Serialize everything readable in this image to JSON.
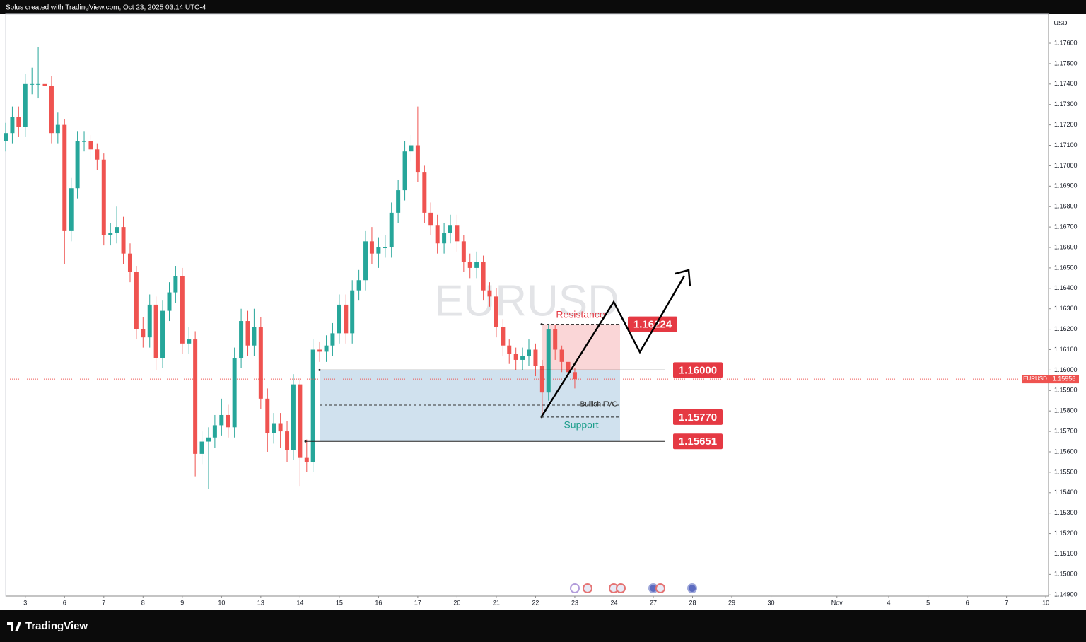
{
  "header_text": "Solus created with TradingView.com, Oct 23, 2025 03:14 UTC-4",
  "brand": "TradingView",
  "chart_data": {
    "type": "candlestick",
    "watermark": "EURUSD",
    "symbol": "EURUSD",
    "currency": "USD",
    "up_color": "#26a69a",
    "down_color": "#ef5350",
    "grid": false,
    "xlim": [
      -0.5,
      26.07
    ],
    "xticks": [
      {
        "value": 0,
        "label": "3"
      },
      {
        "value": 1,
        "label": "6"
      },
      {
        "value": 2,
        "label": "7"
      },
      {
        "value": 3,
        "label": "8"
      },
      {
        "value": 4,
        "label": "9"
      },
      {
        "value": 5,
        "label": "10"
      },
      {
        "value": 6,
        "label": "13"
      },
      {
        "value": 7,
        "label": "14"
      },
      {
        "value": 8,
        "label": "15"
      },
      {
        "value": 9,
        "label": "16"
      },
      {
        "value": 10,
        "label": "17"
      },
      {
        "value": 11,
        "label": "20"
      },
      {
        "value": 12,
        "label": "21"
      },
      {
        "value": 13,
        "label": "22"
      },
      {
        "value": 14,
        "label": "23"
      },
      {
        "value": 15,
        "label": "24"
      },
      {
        "value": 16,
        "label": "27"
      },
      {
        "value": 17,
        "label": "28"
      },
      {
        "value": 18,
        "label": "29"
      },
      {
        "value": 19,
        "label": "30"
      },
      {
        "value": 20.68,
        "label": "Nov"
      },
      {
        "value": 22,
        "label": "4"
      },
      {
        "value": 23,
        "label": "5"
      },
      {
        "value": 24,
        "label": "6"
      },
      {
        "value": 25,
        "label": "7"
      },
      {
        "value": 26,
        "label": "10"
      }
    ],
    "ylim": [
      1.14894,
      1.17742
    ],
    "yticks": [
      {
        "value": 1.149,
        "label": "1.14900"
      },
      {
        "value": 1.15,
        "label": "1.15000"
      },
      {
        "value": 1.151,
        "label": "1.15100"
      },
      {
        "value": 1.152,
        "label": "1.15200"
      },
      {
        "value": 1.153,
        "label": "1.15300"
      },
      {
        "value": 1.154,
        "label": "1.15400"
      },
      {
        "value": 1.155,
        "label": "1.15500"
      },
      {
        "value": 1.156,
        "label": "1.15600"
      },
      {
        "value": 1.157,
        "label": "1.15700"
      },
      {
        "value": 1.158,
        "label": "1.15800"
      },
      {
        "value": 1.159,
        "label": "1.15900"
      },
      {
        "value": 1.16,
        "label": "1.16000"
      },
      {
        "value": 1.161,
        "label": "1.16100"
      },
      {
        "value": 1.162,
        "label": "1.16200"
      },
      {
        "value": 1.163,
        "label": "1.16300"
      },
      {
        "value": 1.164,
        "label": "1.16400"
      },
      {
        "value": 1.165,
        "label": "1.16500"
      },
      {
        "value": 1.166,
        "label": "1.16600"
      },
      {
        "value": 1.167,
        "label": "1.16700"
      },
      {
        "value": 1.168,
        "label": "1.16800"
      },
      {
        "value": 1.169,
        "label": "1.16900"
      },
      {
        "value": 1.17,
        "label": "1.17000"
      },
      {
        "value": 1.171,
        "label": "1.17100"
      },
      {
        "value": 1.172,
        "label": "1.17200"
      },
      {
        "value": 1.173,
        "label": "1.17300"
      },
      {
        "value": 1.174,
        "label": "1.17400"
      },
      {
        "value": 1.175,
        "label": "1.17500"
      },
      {
        "value": 1.176,
        "label": "1.17600"
      }
    ],
    "x": [
      -0.5,
      -0.33,
      -0.17,
      0,
      0.17,
      0.33,
      0.5,
      0.67,
      0.83,
      1,
      1.17,
      1.33,
      1.5,
      1.67,
      1.83,
      2,
      2.17,
      2.33,
      2.5,
      2.67,
      2.83,
      3,
      3.17,
      3.33,
      3.5,
      3.67,
      3.83,
      4,
      4.17,
      4.33,
      4.5,
      4.67,
      4.83,
      5,
      5.17,
      5.33,
      5.5,
      5.67,
      5.83,
      6,
      6.17,
      6.33,
      6.5,
      6.67,
      6.83,
      7,
      7.17,
      7.33,
      7.5,
      7.67,
      7.83,
      8,
      8.17,
      8.33,
      8.5,
      8.67,
      8.83,
      9,
      9.17,
      9.33,
      9.5,
      9.67,
      9.83,
      10,
      10.17,
      10.33,
      10.5,
      10.67,
      10.83,
      11,
      11.17,
      11.33,
      11.5,
      11.67,
      11.83,
      12,
      12.17,
      12.33,
      12.5,
      12.67,
      12.83,
      13,
      13.17,
      13.33,
      13.5,
      13.67,
      13.83,
      14
    ],
    "open": [
      1.1712,
      1.1716,
      1.1724,
      1.1719,
      1.174,
      1.174,
      1.174,
      1.1739,
      1.1716,
      1.172,
      1.1668,
      1.1689,
      1.1712,
      1.1712,
      1.1708,
      1.1703,
      1.1666,
      1.1667,
      1.167,
      1.1657,
      1.1648,
      1.162,
      1.1616,
      1.1632,
      1.1606,
      1.1629,
      1.1638,
      1.1646,
      1.1613,
      1.1615,
      1.1559,
      1.1565,
      1.1567,
      1.1573,
      1.1578,
      1.1572,
      1.1606,
      1.1624,
      1.1612,
      1.1621,
      1.1586,
      1.1569,
      1.1574,
      1.157,
      1.1561,
      1.1593,
      1.1557,
      1.1555,
      1.161,
      1.1609,
      1.1612,
      1.1618,
      1.1632,
      1.1618,
      1.1639,
      1.1644,
      1.1663,
      1.1657,
      1.166,
      1.166,
      1.1677,
      1.1688,
      1.1707,
      1.171,
      1.1697,
      1.1677,
      1.1671,
      1.1662,
      1.1667,
      1.1671,
      1.1663,
      1.1653,
      1.165,
      1.1653,
      1.1639,
      1.1636,
      1.1621,
      1.1612,
      1.1608,
      1.1605,
      1.1607,
      1.161,
      1.1602,
      1.1589,
      1.162,
      1.161,
      1.1604,
      1.1599
    ],
    "high": [
      1.1721,
      1.1729,
      1.1729,
      1.1745,
      1.1748,
      1.1758,
      1.1747,
      1.1744,
      1.1726,
      1.1723,
      1.1694,
      1.1717,
      1.1717,
      1.1715,
      1.1711,
      1.1706,
      1.1672,
      1.168,
      1.1675,
      1.1662,
      1.1651,
      1.1626,
      1.1637,
      1.1636,
      1.1634,
      1.1643,
      1.1651,
      1.165,
      1.1621,
      1.1619,
      1.157,
      1.1572,
      1.1578,
      1.1586,
      1.1583,
      1.1611,
      1.163,
      1.1629,
      1.163,
      1.1626,
      1.1591,
      1.1579,
      1.1579,
      1.1575,
      1.1598,
      1.1596,
      1.1566,
      1.1615,
      1.1614,
      1.1617,
      1.1623,
      1.1637,
      1.1637,
      1.1644,
      1.1649,
      1.1668,
      1.167,
      1.1665,
      1.1666,
      1.1682,
      1.1693,
      1.1712,
      1.1715,
      1.1729,
      1.17,
      1.1682,
      1.1676,
      1.1672,
      1.1676,
      1.1676,
      1.1666,
      1.1657,
      1.1658,
      1.1656,
      1.1643,
      1.164,
      1.1625,
      1.1615,
      1.1611,
      1.1611,
      1.1615,
      1.1613,
      1.1605,
      1.1622,
      1.1622,
      1.1612,
      1.1606,
      1.1601
    ],
    "low": [
      1.1707,
      1.1711,
      1.1714,
      1.1714,
      1.1735,
      1.1733,
      1.1734,
      1.1711,
      1.1711,
      1.1652,
      1.1663,
      1.1684,
      1.1707,
      1.1703,
      1.1698,
      1.1661,
      1.1661,
      1.1662,
      1.1652,
      1.1643,
      1.1615,
      1.1611,
      1.1611,
      1.16,
      1.1601,
      1.1624,
      1.1633,
      1.1608,
      1.1608,
      1.1548,
      1.1554,
      1.1542,
      1.1562,
      1.1568,
      1.1567,
      1.1567,
      1.1601,
      1.1607,
      1.1607,
      1.1581,
      1.156,
      1.1564,
      1.1562,
      1.1555,
      1.1556,
      1.1543,
      1.155,
      1.155,
      1.1604,
      1.1604,
      1.1607,
      1.1613,
      1.1613,
      1.1613,
      1.1634,
      1.1639,
      1.1652,
      1.165,
      1.1655,
      1.1655,
      1.1672,
      1.1683,
      1.1702,
      1.1692,
      1.1672,
      1.1666,
      1.1657,
      1.1657,
      1.1662,
      1.1658,
      1.1648,
      1.1645,
      1.1645,
      1.1634,
      1.1631,
      1.1616,
      1.1607,
      1.1603,
      1.16,
      1.16,
      1.1602,
      1.1597,
      1.1577,
      1.1585,
      1.1605,
      1.1599,
      1.1594,
      1.1591
    ],
    "close": [
      1.1716,
      1.1724,
      1.1719,
      1.174,
      1.174,
      1.174,
      1.1739,
      1.1716,
      1.172,
      1.1668,
      1.1689,
      1.1712,
      1.1712,
      1.1708,
      1.1703,
      1.1666,
      1.1667,
      1.167,
      1.1657,
      1.1648,
      1.162,
      1.1616,
      1.1632,
      1.1606,
      1.1629,
      1.1638,
      1.1646,
      1.1613,
      1.1615,
      1.1559,
      1.1565,
      1.1567,
      1.1573,
      1.1578,
      1.1572,
      1.1606,
      1.1624,
      1.1612,
      1.1621,
      1.1586,
      1.1569,
      1.1574,
      1.157,
      1.1561,
      1.1593,
      1.1557,
      1.1555,
      1.161,
      1.1609,
      1.1612,
      1.1618,
      1.1632,
      1.1618,
      1.1639,
      1.1644,
      1.1663,
      1.1657,
      1.166,
      1.166,
      1.1677,
      1.1688,
      1.1707,
      1.171,
      1.1697,
      1.1677,
      1.1671,
      1.1662,
      1.1667,
      1.1671,
      1.1663,
      1.1653,
      1.165,
      1.1653,
      1.1639,
      1.1636,
      1.1621,
      1.1612,
      1.1608,
      1.1605,
      1.1607,
      1.161,
      1.1602,
      1.1589,
      1.162,
      1.161,
      1.1604,
      1.1599,
      1.15956
    ],
    "levels": [
      1.16224,
      {
        "value": 1.16,
        "label": "1.16000"
      },
      {
        "value": 1.1577,
        "label": "1.15770"
      },
      1.15651
    ],
    "level_color": "#e53943",
    "resistance_label": "Resistance",
    "support_label": "Support",
    "fvg_label": "Bullish FVG"
  }
}
